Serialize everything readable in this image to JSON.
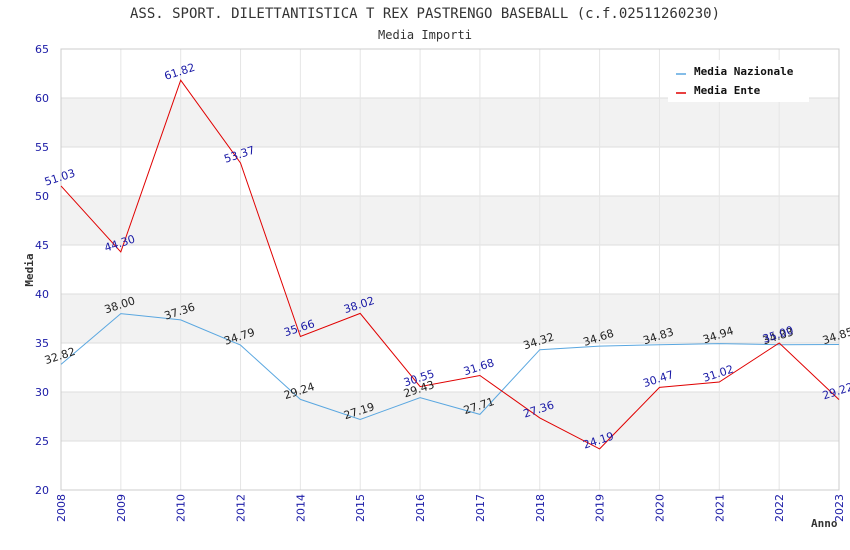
{
  "chart_data": {
    "type": "line",
    "title": "ASS. SPORT. DILETTANTISTICA T REX PASTRENGO BASEBALL (c.f.02511260230)",
    "subtitle": "Media Importi",
    "xlabel": "Anno",
    "ylabel": "Media",
    "ylim": [
      20,
      65
    ],
    "yticks": [
      "20",
      "25",
      "30",
      "35",
      "40",
      "45",
      "50",
      "55",
      "60",
      "65"
    ],
    "categories": [
      "2008",
      "2009",
      "2010",
      "2012",
      "2014",
      "2015",
      "2016",
      "2017",
      "2018",
      "2019",
      "2020",
      "2021",
      "2022",
      "2023"
    ],
    "legend_position": "top-right",
    "series": [
      {
        "name": "Media Nazionale",
        "color": "#5aa7e0",
        "values": [
          32.82,
          38.0,
          37.36,
          34.79,
          29.24,
          27.19,
          29.43,
          27.71,
          34.32,
          34.68,
          34.83,
          34.94,
          34.83,
          34.85
        ],
        "labels": [
          "32.82",
          "38.00",
          "37.36",
          "34.79",
          "29.24",
          "27.19",
          "29.43",
          "27.71",
          "34.32",
          "34.68",
          "34.83",
          "34.94",
          "34.83",
          "34.85"
        ]
      },
      {
        "name": "Media Ente",
        "color": "#e00000",
        "values": [
          51.03,
          44.3,
          61.82,
          53.37,
          35.66,
          38.02,
          30.55,
          31.68,
          27.36,
          24.19,
          30.47,
          31.02,
          35.0,
          29.22
        ],
        "labels": [
          "51.03",
          "44.30",
          "61.82",
          "53.37",
          "35.66",
          "38.02",
          "30.55",
          "31.68",
          "27.36",
          "24.19",
          "30.47",
          "31.02",
          "35.00",
          "29.22"
        ]
      }
    ]
  }
}
